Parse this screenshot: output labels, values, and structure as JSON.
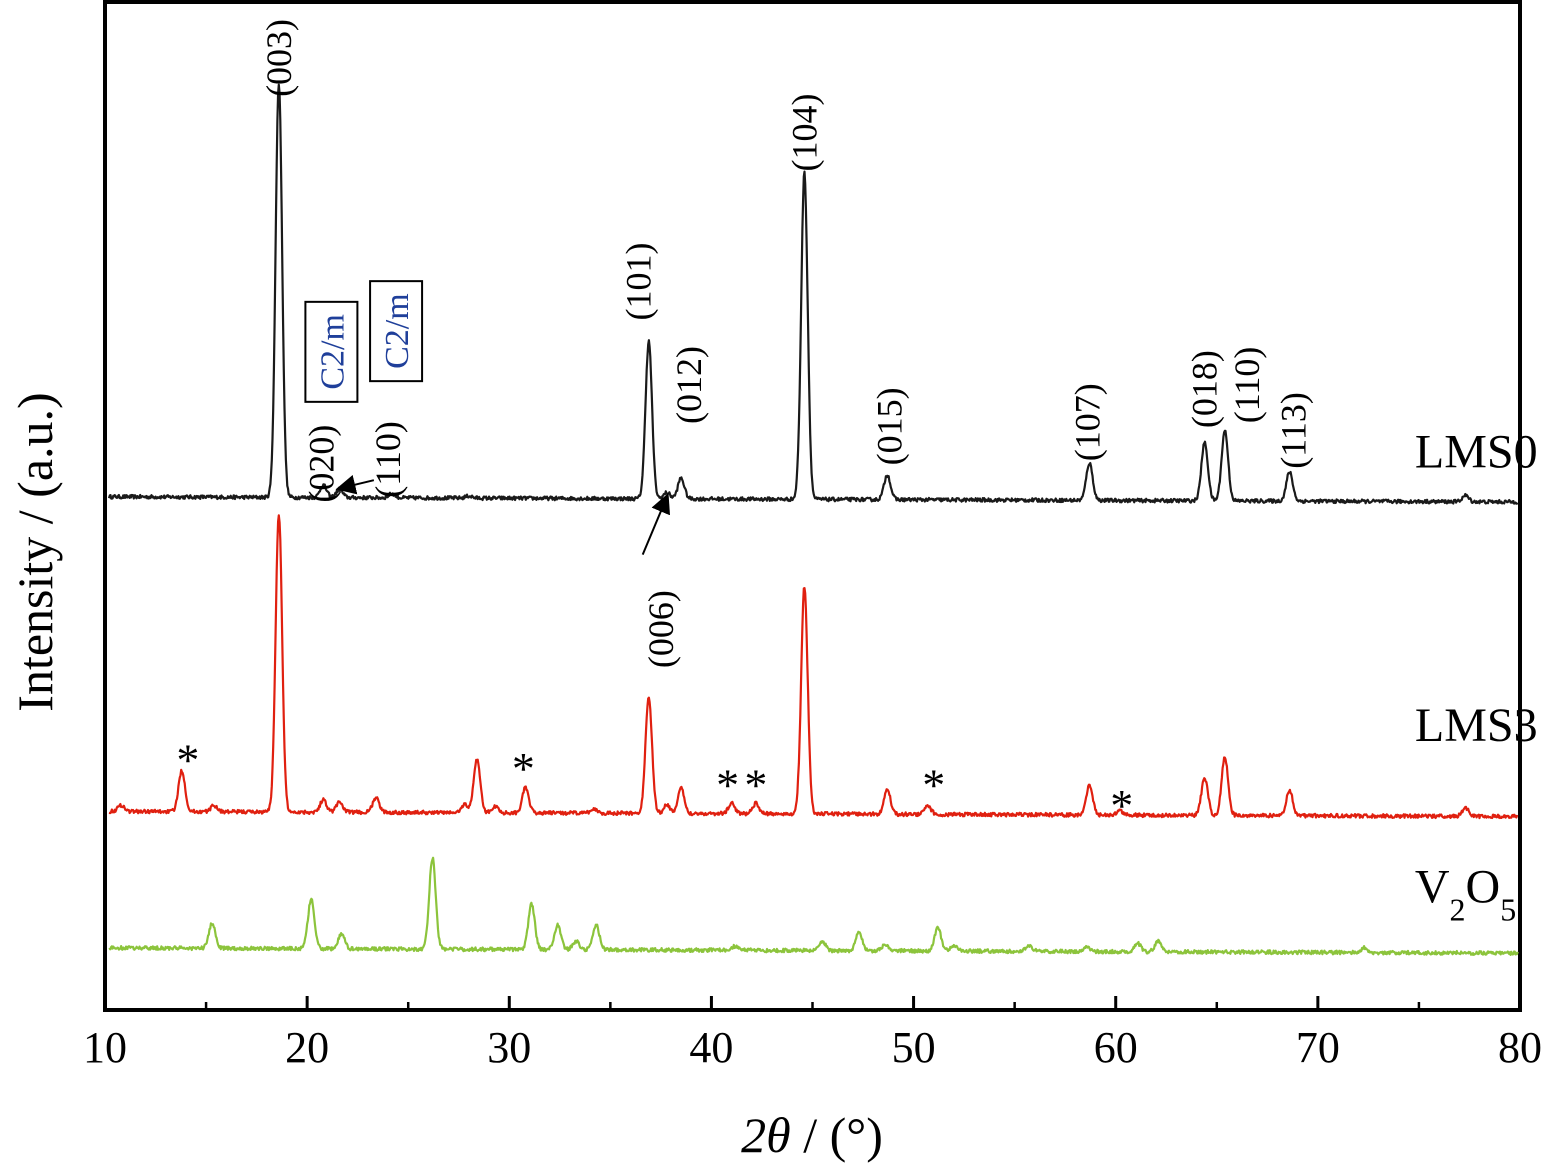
{
  "chart_data": {
    "type": "line",
    "title": "",
    "xlabel": "2θ / (°)",
    "xlabel_parts": {
      "theta_symbol": "2θ",
      "rest": " / (°)"
    },
    "ylabel": "Intensity / (a.u.)",
    "xlim": [
      10,
      80
    ],
    "x_ticks": [
      10,
      20,
      30,
      40,
      50,
      60,
      70,
      80
    ],
    "y_ticks": "none",
    "grid": false,
    "legend": "series labels printed at right end of each trace",
    "colors": {
      "LMS0": "#1a1a1a",
      "LMS3": "#e02010",
      "V2O5": "#8cc43c",
      "phase_label": "#1f3f9a"
    },
    "series": [
      {
        "name": "LMS0",
        "label_base": "LMS0",
        "baseline": 1.0,
        "peaks": [
          {
            "x": 18.6,
            "y": 10.0
          },
          {
            "x": 20.8,
            "y": 0.3
          },
          {
            "x": 21.6,
            "y": 0.2
          },
          {
            "x": 24.2,
            "y": 0.1
          },
          {
            "x": 28.0,
            "y": 0.05
          },
          {
            "x": 36.9,
            "y": 3.8
          },
          {
            "x": 37.8,
            "y": 0.15
          },
          {
            "x": 38.5,
            "y": 0.5
          },
          {
            "x": 44.6,
            "y": 7.9
          },
          {
            "x": 48.7,
            "y": 0.6
          },
          {
            "x": 58.7,
            "y": 0.9
          },
          {
            "x": 64.4,
            "y": 1.4
          },
          {
            "x": 65.4,
            "y": 1.7
          },
          {
            "x": 68.6,
            "y": 0.7
          },
          {
            "x": 77.3,
            "y": 0.15
          }
        ]
      },
      {
        "name": "LMS3",
        "label_base": "LMS3",
        "baseline": -6.6,
        "peaks": [
          {
            "x": 10.8,
            "y": 0.15
          },
          {
            "x": 13.8,
            "y": 1.0
          },
          {
            "x": 15.4,
            "y": 0.15
          },
          {
            "x": 18.6,
            "y": 7.2
          },
          {
            "x": 20.8,
            "y": 0.3
          },
          {
            "x": 21.6,
            "y": 0.25
          },
          {
            "x": 23.4,
            "y": 0.35
          },
          {
            "x": 27.8,
            "y": 0.2
          },
          {
            "x": 28.4,
            "y": 1.3
          },
          {
            "x": 29.3,
            "y": 0.15
          },
          {
            "x": 30.8,
            "y": 0.6
          },
          {
            "x": 34.2,
            "y": 0.1
          },
          {
            "x": 36.9,
            "y": 2.8
          },
          {
            "x": 37.8,
            "y": 0.2
          },
          {
            "x": 38.5,
            "y": 0.6
          },
          {
            "x": 41.0,
            "y": 0.25
          },
          {
            "x": 42.2,
            "y": 0.25
          },
          {
            "x": 44.6,
            "y": 5.5
          },
          {
            "x": 48.7,
            "y": 0.6
          },
          {
            "x": 50.7,
            "y": 0.2
          },
          {
            "x": 58.7,
            "y": 0.7
          },
          {
            "x": 60.2,
            "y": 0.1
          },
          {
            "x": 64.4,
            "y": 0.9
          },
          {
            "x": 65.4,
            "y": 1.4
          },
          {
            "x": 68.6,
            "y": 0.6
          },
          {
            "x": 77.3,
            "y": 0.2
          }
        ]
      },
      {
        "name": "V₂O₅",
        "label_base": "V",
        "label_sub1": "2",
        "label_mid": "O",
        "label_sub2": "5",
        "baseline": -9.9,
        "peaks": [
          {
            "x": 15.3,
            "y": 0.6
          },
          {
            "x": 20.2,
            "y": 1.2
          },
          {
            "x": 21.7,
            "y": 0.35
          },
          {
            "x": 26.2,
            "y": 2.2
          },
          {
            "x": 31.1,
            "y": 1.1
          },
          {
            "x": 32.4,
            "y": 0.6
          },
          {
            "x": 33.3,
            "y": 0.2
          },
          {
            "x": 34.3,
            "y": 0.6
          },
          {
            "x": 41.2,
            "y": 0.1
          },
          {
            "x": 45.5,
            "y": 0.2
          },
          {
            "x": 47.3,
            "y": 0.45
          },
          {
            "x": 48.6,
            "y": 0.15
          },
          {
            "x": 51.2,
            "y": 0.55
          },
          {
            "x": 52.0,
            "y": 0.15
          },
          {
            "x": 55.7,
            "y": 0.15
          },
          {
            "x": 58.6,
            "y": 0.1
          },
          {
            "x": 61.1,
            "y": 0.2
          },
          {
            "x": 62.1,
            "y": 0.25
          },
          {
            "x": 72.3,
            "y": 0.12
          }
        ]
      }
    ],
    "annotations": {
      "peak_labels": [
        {
          "text": "(003)",
          "x": 18.6,
          "y": 11.6
        },
        {
          "text": "(020)",
          "x": 20.7,
          "y": 1.8
        },
        {
          "text": "(110)",
          "x": 24.0,
          "y": 1.9
        },
        {
          "text": "(101)",
          "x": 36.4,
          "y": 6.2
        },
        {
          "text": "(012)",
          "x": 38.9,
          "y": 3.7
        },
        {
          "text": "(104)",
          "x": 44.6,
          "y": 9.8
        },
        {
          "text": "(015)",
          "x": 48.8,
          "y": 2.7
        },
        {
          "text": "(107)",
          "x": 58.6,
          "y": 2.8
        },
        {
          "text": "(018)",
          "x": 64.4,
          "y": 3.6
        },
        {
          "text": "(110)",
          "x": 66.5,
          "y": 3.7
        },
        {
          "text": "(113)",
          "x": 68.8,
          "y": 2.6
        },
        {
          "text": "(006)",
          "x": 37.5,
          "y": -2.2
        }
      ],
      "phase_labels": [
        {
          "text": "C2/m",
          "x": 21.2,
          "y": 4.5
        },
        {
          "text": "C2/m",
          "x": 24.4,
          "y": 5.0
        }
      ],
      "arrows": [
        {
          "from_x": 23.3,
          "from_y": 1.4,
          "to_x": 21.6,
          "to_y": 1.2
        },
        {
          "from_x": 36.6,
          "from_y": -0.4,
          "to_x": 37.8,
          "to_y": 1.0
        }
      ],
      "stars": [
        {
          "x": 14.1,
          "y": -5.3
        },
        {
          "x": 30.7,
          "y": -5.5
        },
        {
          "x": 40.8,
          "y": -5.9
        },
        {
          "x": 42.2,
          "y": -5.9
        },
        {
          "x": 51.0,
          "y": -5.9
        },
        {
          "x": 60.3,
          "y": -6.4
        }
      ],
      "star_symbol": "*"
    },
    "series_label_positions": [
      {
        "series": "LMS0",
        "x": 74.8,
        "y": 1.7
      },
      {
        "series": "LMS3",
        "x": 74.8,
        "y": -4.9
      },
      {
        "series": "V₂O₅",
        "x": 74.8,
        "y": -8.8
      }
    ]
  }
}
